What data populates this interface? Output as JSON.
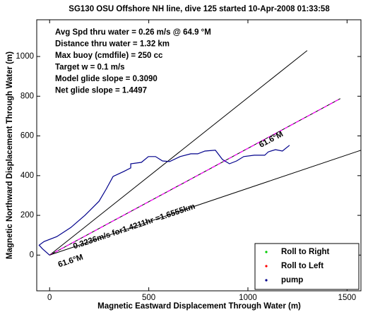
{
  "chart_data": {
    "type": "line",
    "title": "SG130 OSU Offshore NH line, dive 125 started 10-Apr-2008 01:33:58",
    "x_label": "Magnetic Eastward Displacement Through Water (m)",
    "y_label": "Magnetic Northward Displacement Through Water (m)",
    "info": [
      "Avg Spd thru water  =  0.26 m/s @  64.9 °M",
      "Distance thru water = 1.32 km",
      "Max buoy (cmdfile) = 250 cc",
      "Target w           = 0.1 m/s",
      "Model glide slope   = 0.3090",
      "Net glide slope       = 1.4497"
    ],
    "annotations": [
      "0.3236m/s for1.4211hr =1.6555km",
      "61.6°M",
      "61.6°M"
    ],
    "xlim": [
      -65,
      1570
    ],
    "ylim": [
      -180,
      1185
    ],
    "xticks": [
      0,
      500,
      1000,
      1500
    ],
    "yticks": [
      0,
      200,
      400,
      600,
      800,
      1000
    ],
    "legend": "lower right",
    "series": [
      {
        "name": "Roll to Right",
        "color": "#00cc00",
        "x": [],
        "values": []
      },
      {
        "name": "Roll to Left",
        "color": "#ff0000",
        "x": [],
        "values": []
      },
      {
        "name": "pump",
        "color": "#00008b",
        "x": [
          0,
          -36,
          -53,
          -28,
          36,
          107,
          178,
          249,
          285,
          320,
          374,
          409,
          409,
          463,
          498,
          534,
          569,
          605,
          658,
          712,
          747,
          783,
          836,
          872,
          907,
          943,
          979,
          1032,
          1085,
          1103,
          1139,
          1174,
          1210
        ],
        "values": [
          0,
          32,
          50,
          68,
          93,
          139,
          200,
          271,
          332,
          396,
          421,
          439,
          460,
          467,
          496,
          496,
          474,
          471,
          496,
          510,
          510,
          524,
          528,
          481,
          460,
          474,
          496,
          503,
          503,
          520,
          531,
          524,
          553
        ]
      }
    ],
    "lines": [
      {
        "x": [
          0,
          1299
        ],
        "y": [
          0,
          1030
        ],
        "color": "#000000"
      },
      {
        "x": [
          0,
          1466
        ],
        "y": [
          0,
          788
        ],
        "color": "#ff00ff"
      },
      {
        "x": [
          0,
          1570
        ],
        "y": [
          0,
          528
        ],
        "color": "#000000"
      }
    ]
  }
}
